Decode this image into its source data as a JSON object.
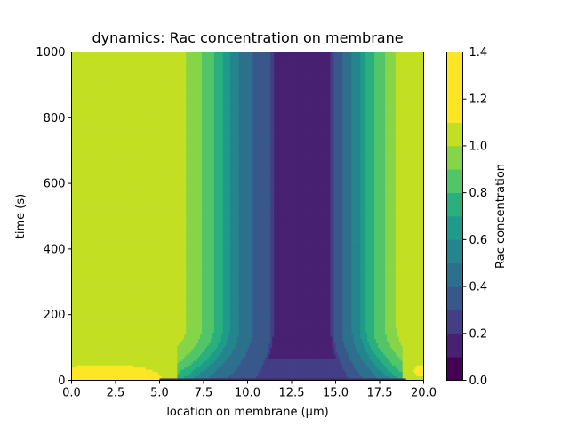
{
  "chart_data": {
    "type": "heatmap",
    "title": "dynamics: Rac concentration on membrane",
    "xlabel": "location on membrane (μm)",
    "ylabel": "time (s)",
    "xlim": [
      0,
      20
    ],
    "ylim": [
      0,
      1000
    ],
    "x_ticks": [
      "0.0",
      "2.5",
      "5.0",
      "7.5",
      "10.0",
      "12.5",
      "15.0",
      "17.5",
      "20.0"
    ],
    "y_ticks": [
      "0",
      "200",
      "400",
      "600",
      "800",
      "1000"
    ],
    "colorbar": {
      "label": "Rac concentration",
      "range": [
        0,
        1.4
      ],
      "levels": [
        0.0,
        0.1,
        0.2,
        0.3,
        0.4,
        0.5,
        0.6,
        0.7,
        0.8,
        0.9,
        1.0,
        1.1,
        1.2,
        1.3,
        1.4
      ],
      "tick_labels": [
        "0.0",
        "0.2",
        "0.4",
        "0.6",
        "0.8",
        "1.0",
        "1.2",
        "1.4"
      ],
      "colors": [
        "#440154",
        "#482173",
        "#433e85",
        "#38588c",
        "#2d708e",
        "#25858e",
        "#1e9b8a",
        "#2ab07f",
        "#52c569",
        "#86d549",
        "#c2df23",
        "#fde725",
        "#fde725",
        "#fde725"
      ]
    },
    "contour_model": {
      "description_of_values": "Rac concentration as function of location (um) and time (s)",
      "steady_profile": [
        [
          0.0,
          1.05
        ],
        [
          6.0,
          1.05
        ],
        [
          7.0,
          0.95
        ],
        [
          7.8,
          0.85
        ],
        [
          8.5,
          0.72
        ],
        [
          9.2,
          0.55
        ],
        [
          10.0,
          0.42
        ],
        [
          11.3,
          0.33
        ],
        [
          11.5,
          0.18
        ],
        [
          14.7,
          0.18
        ],
        [
          14.9,
          0.33
        ],
        [
          15.5,
          0.42
        ],
        [
          16.2,
          0.55
        ],
        [
          16.8,
          0.72
        ],
        [
          17.4,
          0.85
        ],
        [
          18.2,
          0.95
        ],
        [
          18.7,
          1.05
        ],
        [
          20.0,
          1.05
        ]
      ],
      "early_spot": {
        "x": 1.9,
        "t": 10,
        "peak": 1.25
      }
    }
  },
  "palette": {
    "axis": "#000000",
    "background": "#ffffff"
  }
}
